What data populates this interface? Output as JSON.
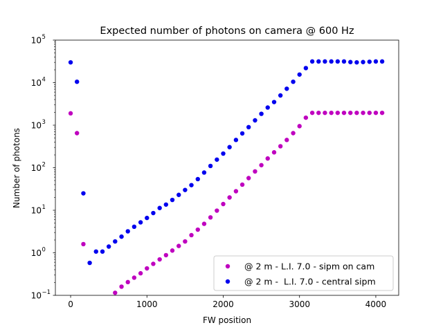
{
  "chart_data": {
    "type": "scatter",
    "title": "Expected number of photons on camera @ 600 Hz",
    "xlabel": "FW position",
    "ylabel": "Number of photons",
    "xlim": [
      -200,
      4300
    ],
    "ylim": [
      0.1,
      100000
    ],
    "yscale": "log",
    "x_ticks": [
      0,
      1000,
      2000,
      3000,
      4000
    ],
    "y_tick_exponents": [
      -1,
      0,
      1,
      2,
      3,
      4,
      5
    ],
    "grid": false,
    "legend_position": "lower-right",
    "series": [
      {
        "name": "@ 2 m - L.I. 7.0 - sipm on cam",
        "color": "#bf00bf",
        "x": [
          0,
          83,
          167,
          583,
          667,
          750,
          833,
          917,
          1000,
          1083,
          1167,
          1250,
          1333,
          1417,
          1500,
          1583,
          1667,
          1750,
          1833,
          1917,
          2000,
          2083,
          2167,
          2250,
          2333,
          2417,
          2500,
          2583,
          2667,
          2750,
          2833,
          2917,
          3000,
          3083,
          3167,
          3250,
          3333,
          3417,
          3500,
          3583,
          3667,
          3750,
          3833,
          3917,
          4000,
          4083
        ],
        "y": [
          1900,
          650,
          1.6,
          0.115,
          0.16,
          0.205,
          0.26,
          0.33,
          0.43,
          0.55,
          0.7,
          0.88,
          1.13,
          1.45,
          1.85,
          2.6,
          3.5,
          4.8,
          6.8,
          9.8,
          14,
          20,
          28,
          40,
          57,
          82,
          115,
          165,
          230,
          320,
          450,
          650,
          950,
          1500,
          1950,
          1950,
          1950,
          1950,
          1950,
          1950,
          1950,
          1950,
          1950,
          1950,
          1950,
          1950
        ]
      },
      {
        "name": "@ 2 m -  L.I. 7.0 - central sipm",
        "color": "#0000ee",
        "x": [
          0,
          83,
          167,
          250,
          333,
          417,
          500,
          583,
          667,
          750,
          833,
          917,
          1000,
          1083,
          1167,
          1250,
          1333,
          1417,
          1500,
          1583,
          1667,
          1750,
          1833,
          1917,
          2000,
          2083,
          2167,
          2250,
          2333,
          2417,
          2500,
          2583,
          2667,
          2750,
          2833,
          2917,
          3000,
          3083,
          3167,
          3250,
          3333,
          3417,
          3500,
          3583,
          3667,
          3750,
          3833,
          3917,
          4000,
          4083
        ],
        "y": [
          30000,
          10500,
          25,
          0.58,
          1.07,
          1.07,
          1.4,
          1.85,
          2.4,
          3.2,
          4.1,
          5.2,
          6.6,
          8.6,
          11.3,
          13.6,
          17.5,
          23,
          30,
          39,
          54,
          77,
          110,
          155,
          215,
          305,
          450,
          640,
          900,
          1300,
          1850,
          2600,
          3500,
          5000,
          7200,
          10500,
          15500,
          22000,
          31500,
          31500,
          31500,
          31500,
          31500,
          31500,
          30500,
          30000,
          30500,
          31000,
          31500,
          31500
        ]
      }
    ]
  }
}
